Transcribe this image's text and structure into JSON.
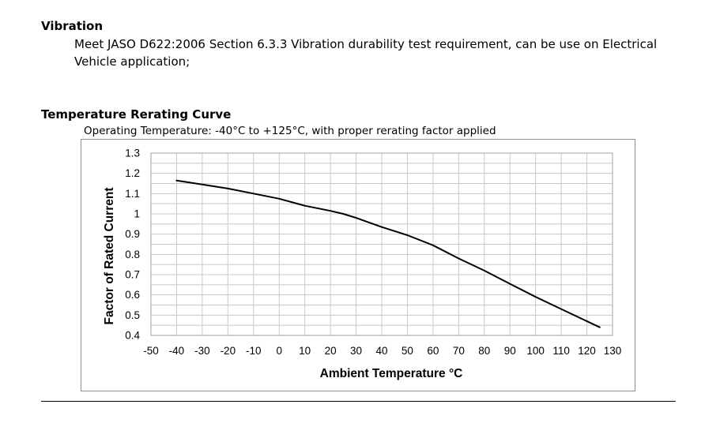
{
  "vibration": {
    "heading": "Vibration",
    "text": "Meet JASO D622:2006 Section 6.3.3 Vibration durability test requirement, can be use on Electrical Vehicle application;"
  },
  "rerating": {
    "heading": "Temperature Rerating Curve",
    "operating_note": "Operating Temperature:  -40°C to +125°C, with proper rerating factor applied"
  },
  "chart_data": {
    "type": "line",
    "title": "",
    "xlabel": "Ambient Temperature °C",
    "ylabel": "Factor of Rated Current",
    "xlim": [
      -50,
      130
    ],
    "ylim": [
      0.4,
      1.3
    ],
    "x_ticks": [
      "-50",
      "-40",
      "-30",
      "-20",
      "-10",
      "0",
      "10",
      "20",
      "30",
      "40",
      "50",
      "60",
      "70",
      "80",
      "90",
      "100",
      "110",
      "120",
      "130"
    ],
    "y_ticks": [
      "1.3",
      "1.2",
      "1.1",
      "1",
      "0.9",
      "0.8",
      "0.7",
      "0.6",
      "0.5",
      "0.4"
    ],
    "grid": true,
    "series": [
      {
        "x": [
          -40,
          -30,
          -20,
          -10,
          0,
          10,
          20,
          25,
          30,
          40,
          50,
          60,
          70,
          80,
          90,
          100,
          110,
          125
        ],
        "y": [
          1.165,
          1.145,
          1.125,
          1.1,
          1.075,
          1.04,
          1.015,
          1.0,
          0.98,
          0.935,
          0.895,
          0.845,
          0.78,
          0.72,
          0.655,
          0.59,
          0.53,
          0.44
        ]
      }
    ],
    "line_color": "#000000",
    "grid_color": "#c8c8c8"
  }
}
